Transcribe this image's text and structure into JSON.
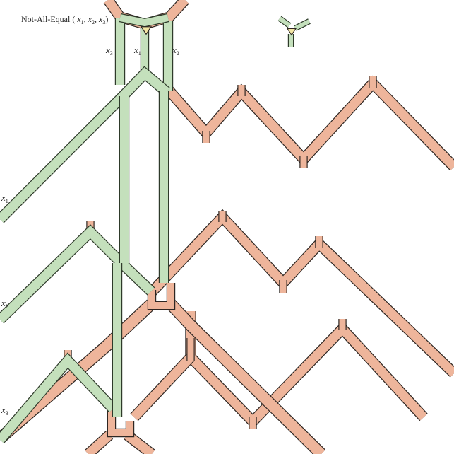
{
  "title": {
    "name": "Not-All-Equal",
    "args": [
      "x",
      "1",
      "x",
      "2",
      "x",
      "3"
    ]
  },
  "labels": {
    "top_x3": [
      "x",
      "3"
    ],
    "top_x1": [
      "x",
      "1"
    ],
    "top_x2": [
      "x",
      "2"
    ],
    "left_x1": [
      "x",
      "1"
    ],
    "left_x2": [
      "x",
      "2"
    ],
    "left_x3": [
      "x",
      "3"
    ]
  },
  "colors": {
    "orange_fill": "#eeb59b",
    "green_fill": "#c4e0bc",
    "triangle_fill": "#f3e6a4",
    "outline": "#2e2622"
  }
}
